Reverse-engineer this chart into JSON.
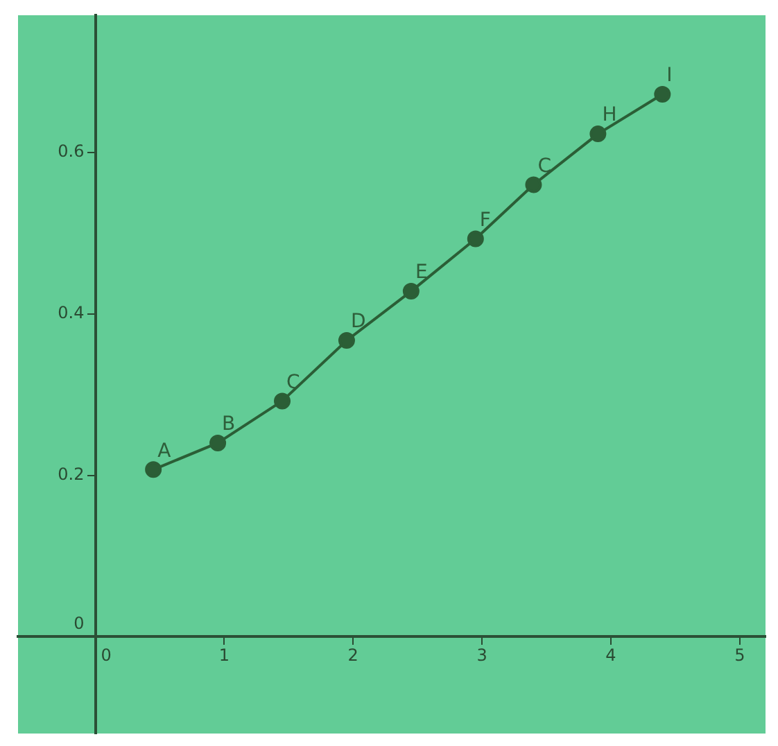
{
  "chart_data": {
    "type": "line",
    "x": [
      0.45,
      0.95,
      1.45,
      1.95,
      2.45,
      2.95,
      3.4,
      3.9,
      4.4
    ],
    "series": [
      {
        "color": "#2b5e36",
        "values": [
          0.207,
          0.24,
          0.292,
          0.367,
          0.428,
          0.493,
          0.56,
          0.623,
          0.672
        ]
      }
    ],
    "xlim": [
      -0.6,
      5.2
    ],
    "ylim": [
      -0.12,
      0.77
    ],
    "xticks": [
      0,
      1,
      2,
      3,
      4,
      5
    ],
    "yticks": [
      0,
      0.2,
      0.4,
      0.6
    ],
    "grid": false,
    "legend": false,
    "marker": "circle",
    "line_style": "solid",
    "annotations": [
      {
        "text": "A",
        "x": 0.45,
        "y": 0.207
      },
      {
        "text": "B",
        "x": 0.95,
        "y": 0.24
      },
      {
        "text": "C",
        "x": 1.45,
        "y": 0.292
      },
      {
        "text": "D",
        "x": 1.95,
        "y": 0.367
      },
      {
        "text": "E",
        "x": 2.45,
        "y": 0.428
      },
      {
        "text": "F",
        "x": 2.95,
        "y": 0.493
      },
      {
        "text": "C",
        "x": 3.4,
        "y": 0.56
      },
      {
        "text": "H",
        "x": 3.9,
        "y": 0.623
      },
      {
        "text": "I",
        "x": 4.4,
        "y": 0.672
      }
    ]
  }
}
